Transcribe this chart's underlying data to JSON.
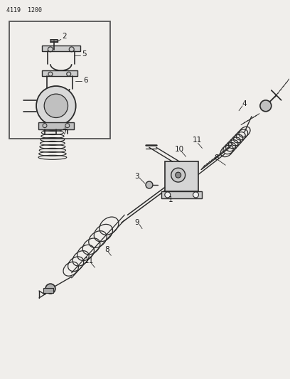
{
  "title": "4119  1200",
  "bg_color": "#f0eeeb",
  "line_color": "#2a2a2a",
  "text_color": "#1a1a1a",
  "fig_width": 4.08,
  "fig_height": 5.33,
  "dpi": 100
}
